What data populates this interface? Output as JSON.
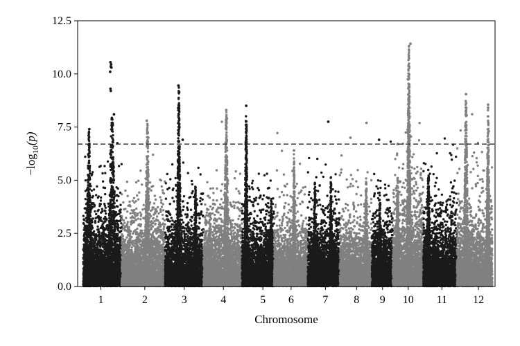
{
  "chart_data": {
    "type": "scatter",
    "subtype": "manhattan",
    "xlabel": "Chromosome",
    "ylabel_main": "−log",
    "ylabel_sub": "10",
    "ylabel_var": "(p)",
    "ylim": [
      0,
      12.5
    ],
    "yticks": [
      0.0,
      2.5,
      5.0,
      7.5,
      10.0,
      12.5
    ],
    "ytick_labels": [
      "0.0",
      "2.5",
      "5.0",
      "7.5",
      "10.0",
      "12.5"
    ],
    "threshold": 6.7,
    "colors": {
      "dark": "#1a1a1a",
      "light": "#808080"
    },
    "chromosomes": [
      {
        "label": "1",
        "start": 0,
        "end": 12,
        "color": "dark",
        "labelPos": 5.5,
        "background": 2.2,
        "peaks": [
          {
            "pos": 1.8,
            "height": 7.4,
            "width": 1.6
          },
          {
            "pos": 9.0,
            "height": 8.1,
            "width": 2.4
          }
        ],
        "hits": [
          [
            8.5,
            10.55
          ],
          [
            8.7,
            10.45
          ],
          [
            8.6,
            10.35
          ],
          [
            8.8,
            10.3
          ],
          [
            8.4,
            10.1
          ],
          [
            8.5,
            9.3
          ],
          [
            8.6,
            9.2
          ],
          [
            9.6,
            8.1
          ],
          [
            9.2,
            7.6
          ],
          [
            1.9,
            7.4
          ],
          [
            1.7,
            7.1
          ]
        ]
      },
      {
        "label": "2",
        "start": 12,
        "end": 25.5,
        "color": "light",
        "labelPos": 19.2,
        "background": 2.0,
        "peaks": [
          {
            "pos": 20.0,
            "height": 7.8,
            "width": 1.4
          }
        ],
        "hits": [
          [
            19.8,
            7.8
          ],
          [
            20.3,
            7.0
          ]
        ]
      },
      {
        "label": "3",
        "start": 25.5,
        "end": 37.5,
        "color": "dark",
        "labelPos": 31.5,
        "background": 2.0,
        "peaks": [
          {
            "pos": 29.8,
            "height": 9.45,
            "width": 1.2
          },
          {
            "pos": 35.0,
            "height": 4.9,
            "width": 1.0
          }
        ],
        "hits": [
          [
            29.7,
            9.45
          ],
          [
            29.9,
            9.15
          ],
          [
            29.6,
            8.4
          ],
          [
            29.8,
            8.1
          ],
          [
            31.0,
            6.9
          ]
        ]
      },
      {
        "label": "4",
        "start": 37.5,
        "end": 49.5,
        "color": "light",
        "labelPos": 43.7,
        "background": 2.0,
        "peaks": [
          {
            "pos": 44.6,
            "height": 8.3,
            "width": 1.4
          },
          {
            "pos": 39.5,
            "height": 3.5,
            "width": 1.2
          }
        ],
        "hits": [
          [
            44.6,
            8.3
          ],
          [
            44.8,
            7.9
          ]
        ]
      },
      {
        "label": "5",
        "start": 49.5,
        "end": 59.5,
        "color": "dark",
        "labelPos": 56.0,
        "background": 2.0,
        "peaks": [
          {
            "pos": 50.8,
            "height": 8.5,
            "width": 1.0
          },
          {
            "pos": 58.6,
            "height": 4.3,
            "width": 1.0
          }
        ],
        "hits": [
          [
            50.8,
            8.5
          ],
          [
            50.9,
            7.55
          ]
        ]
      },
      {
        "label": "6",
        "start": 59.5,
        "end": 70,
        "color": "light",
        "labelPos": 64.8,
        "background": 1.9,
        "peaks": [
          {
            "pos": 65.7,
            "height": 6.4,
            "width": 0.8
          }
        ],
        "hits": [
          [
            65.7,
            6.4
          ]
        ]
      },
      {
        "label": "7",
        "start": 70,
        "end": 80,
        "color": "dark",
        "labelPos": 75.5,
        "background": 2.0,
        "peaks": [
          {
            "pos": 72.2,
            "height": 5.1,
            "width": 1.2
          },
          {
            "pos": 77.2,
            "height": 5.2,
            "width": 1.0
          }
        ],
        "hits": [
          [
            76.4,
            7.75
          ]
        ]
      },
      {
        "label": "8",
        "start": 80,
        "end": 90,
        "color": "light",
        "labelPos": 85.2,
        "background": 1.8,
        "peaks": [
          {
            "pos": 88.2,
            "height": 5.1,
            "width": 1.0
          }
        ],
        "hits": [
          [
            83.3,
            7.0
          ],
          [
            88.3,
            7.7
          ]
        ]
      },
      {
        "label": "9",
        "start": 90,
        "end": 96.5,
        "color": "dark",
        "labelPos": 93.3,
        "background": 2.0,
        "peaks": [
          {
            "pos": 92.5,
            "height": 4.3,
            "width": 1.0
          }
        ],
        "hits": [
          [
            92.2,
            6.9
          ]
        ]
      },
      {
        "label": "10",
        "start": 96.5,
        "end": 106,
        "color": "light",
        "labelPos": 101.3,
        "background": 2.5,
        "peaks": [
          {
            "pos": 101.5,
            "height": 11.4,
            "width": 1.2
          },
          {
            "pos": 98.0,
            "height": 5.2,
            "width": 1.0
          }
        ],
        "hits": [
          [
            102.0,
            11.42
          ],
          [
            101.2,
            9.75
          ],
          [
            101.6,
            8.8
          ],
          [
            101.4,
            8.4
          ],
          [
            101.7,
            8.0
          ],
          [
            98.0,
            6.7
          ]
        ]
      },
      {
        "label": "11",
        "start": 106,
        "end": 116.5,
        "color": "dark",
        "labelPos": 111.8,
        "background": 2.2,
        "peaks": [
          {
            "pos": 107.6,
            "height": 5.6,
            "width": 1.2
          }
        ],
        "hits": []
      },
      {
        "label": "12",
        "start": 116.5,
        "end": 127.5,
        "color": "light",
        "labelPos": 123.2,
        "background": 2.2,
        "peaks": [
          {
            "pos": 119.3,
            "height": 9.05,
            "width": 1.3
          },
          {
            "pos": 126.2,
            "height": 8.55,
            "width": 1.0
          }
        ],
        "hits": [
          [
            119.3,
            9.05
          ],
          [
            119.5,
            8.05
          ],
          [
            126.2,
            8.55
          ],
          [
            126.4,
            7.3
          ]
        ]
      }
    ]
  }
}
